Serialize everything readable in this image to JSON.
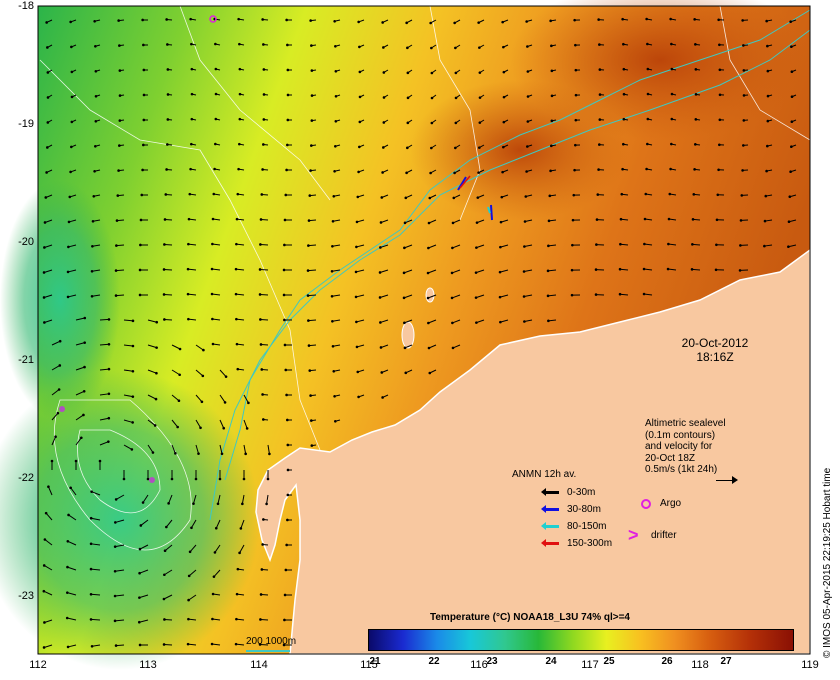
{
  "map": {
    "lon_ticks": [
      "112",
      "113",
      "114",
      "115",
      "116",
      "117",
      "118",
      "119"
    ],
    "lat_ticks": [
      "-18",
      "-19",
      "-20",
      "-21",
      "-22",
      "-23"
    ],
    "extent": {
      "lon": [
        112,
        119
      ],
      "lat": [
        -23.5,
        -18
      ]
    },
    "date": "20-Oct-2012",
    "time": "18:16Z",
    "credit": "© IMOS 05-Apr-2015 22:19:25 Hobart time",
    "land_color": "#f8c8a0"
  },
  "altimetry_legend": {
    "lines": [
      "Altimetric sealevel",
      "(0.1m contours)",
      "and velocity for",
      "20-Oct 18Z",
      "0.5m/s (1kt 24h)"
    ]
  },
  "anmn_legend": {
    "title": "ANMN 12h av.",
    "items": [
      {
        "label": "0-30m",
        "color": "#000000"
      },
      {
        "label": "30-80m",
        "color": "#1010e0"
      },
      {
        "label": "80-150m",
        "color": "#20d0d0"
      },
      {
        "label": "150-300m",
        "color": "#e01010"
      }
    ]
  },
  "markers": {
    "argo_label": "Argo",
    "argo_color": "#e020e0",
    "drifter_label": "drifter",
    "drifter_symbol": ">"
  },
  "colorbar": {
    "title": "Temperature (°C) NOAA18_L3U 74% ql>=4",
    "ticks": [
      "21",
      "22",
      "23",
      "24",
      "25",
      "26",
      "27"
    ]
  },
  "depth_legend": {
    "label": "200  1000m",
    "color": "#40c8c0"
  }
}
